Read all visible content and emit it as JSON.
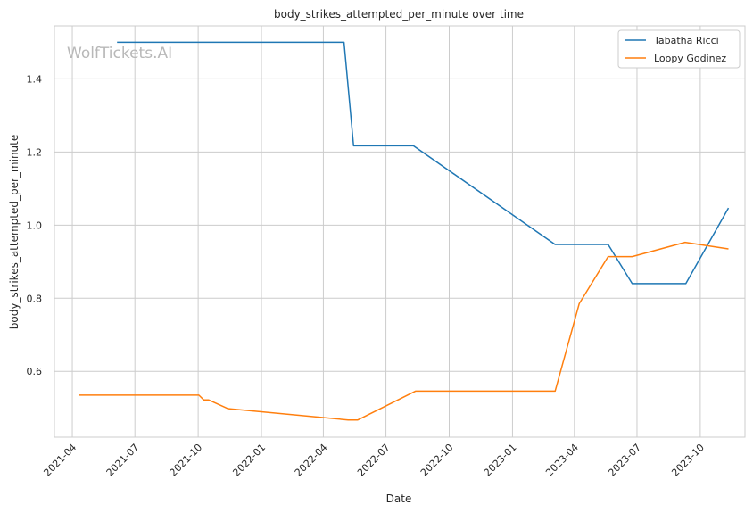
{
  "watermark": "WolfTickets.AI",
  "chart_data": {
    "type": "line",
    "title": "body_strikes_attempted_per_minute over time",
    "xlabel": "Date",
    "ylabel": "body_strikes_attempted_per_minute",
    "x_ticks": [
      "2021-04",
      "2021-07",
      "2021-10",
      "2022-01",
      "2022-04",
      "2022-07",
      "2022-10",
      "2023-01",
      "2023-04",
      "2023-07",
      "2023-10"
    ],
    "y_ticks": [
      "0.6",
      "0.8",
      "1.0",
      "1.2",
      "1.4"
    ],
    "xlim": [
      "2021-03-06",
      "2023-12-05"
    ],
    "ylim": [
      0.42,
      1.545
    ],
    "grid": true,
    "legend_position": "top-right",
    "series": [
      {
        "name": "Tabatha Ricci",
        "color": "#1f77b4",
        "points": [
          [
            "2021-06-05",
            1.5
          ],
          [
            "2022-05-01",
            1.5
          ],
          [
            "2022-05-15",
            1.217
          ],
          [
            "2022-08-10",
            1.217
          ],
          [
            "2023-03-04",
            0.947
          ],
          [
            "2023-05-20",
            0.947
          ],
          [
            "2023-06-24",
            0.84
          ],
          [
            "2023-09-10",
            0.84
          ],
          [
            "2023-11-11",
            1.047
          ]
        ]
      },
      {
        "name": "Loopy Godinez",
        "color": "#ff7f0e",
        "points": [
          [
            "2021-04-10",
            0.535
          ],
          [
            "2021-10-02",
            0.535
          ],
          [
            "2021-10-09",
            0.522
          ],
          [
            "2021-10-16",
            0.522
          ],
          [
            "2021-11-13",
            0.498
          ],
          [
            "2022-05-07",
            0.467
          ],
          [
            "2022-05-21",
            0.467
          ],
          [
            "2022-08-13",
            0.546
          ],
          [
            "2023-03-04",
            0.546
          ],
          [
            "2023-04-08",
            0.785
          ],
          [
            "2023-05-20",
            0.914
          ],
          [
            "2023-06-24",
            0.914
          ],
          [
            "2023-09-09",
            0.953
          ],
          [
            "2023-11-11",
            0.935
          ]
        ]
      }
    ]
  }
}
